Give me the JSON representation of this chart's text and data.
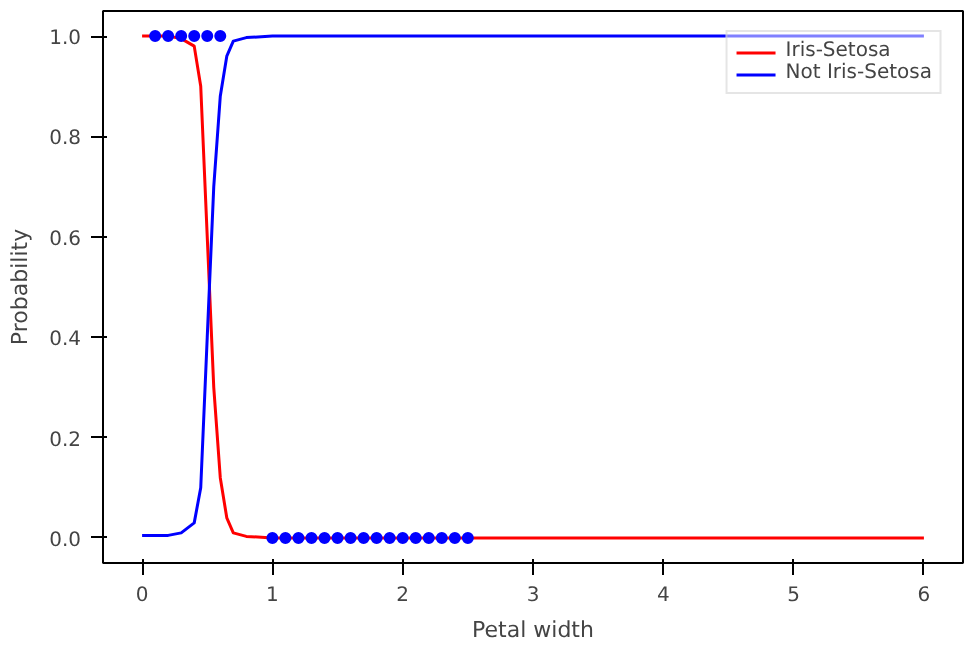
{
  "chart_data": {
    "type": "line",
    "xlabel": "Petal width",
    "ylabel": "Probability",
    "xlim": [
      -0.3,
      6.3
    ],
    "ylim": [
      -0.05,
      1.05
    ],
    "xticks": [
      0,
      1,
      2,
      3,
      4,
      5,
      6
    ],
    "yticks": [
      {
        "value": 0,
        "label": "0.0"
      },
      {
        "value": 0.2,
        "label": "0.2"
      },
      {
        "value": 0.4,
        "label": "0.4"
      },
      {
        "value": 0.6,
        "label": "0.6"
      },
      {
        "value": 0.8,
        "label": "0.8"
      },
      {
        "value": 1,
        "label": "1.0"
      }
    ],
    "grid": false,
    "legend": "top right",
    "series": [
      {
        "name": "Iris-Setosa",
        "color": "#ff0000",
        "x": [
          0,
          0.2,
          0.3,
          0.4,
          0.45,
          0.5,
          0.55,
          0.6,
          0.65,
          0.7,
          0.8,
          1,
          2,
          3,
          4,
          5,
          6
        ],
        "values": [
          1,
          1,
          0.995,
          0.98,
          0.9,
          0.6,
          0.3,
          0.12,
          0.04,
          0.01,
          0.003,
          0,
          0,
          0,
          0,
          0,
          0
        ]
      },
      {
        "name": "Not Iris-Setosa",
        "color": "#0000ff",
        "x": [
          0,
          0.2,
          0.3,
          0.4,
          0.45,
          0.5,
          0.55,
          0.6,
          0.65,
          0.7,
          0.8,
          1,
          2,
          3,
          4,
          5,
          6
        ],
        "values": [
          0.005,
          0.005,
          0.01,
          0.03,
          0.1,
          0.4,
          0.7,
          0.88,
          0.96,
          0.99,
          0.997,
          1,
          1,
          1,
          1,
          1,
          1
        ]
      },
      {
        "type": "scatter",
        "marker": "circle",
        "color": "#0000ff",
        "x": [
          0.1,
          0.2,
          0.3,
          0.4,
          0.5,
          0.6,
          1.0,
          1.1,
          1.2,
          1.3,
          1.4,
          1.5,
          1.6,
          1.7,
          1.8,
          1.9,
          2.0,
          2.1,
          2.2,
          2.3,
          2.4,
          2.5
        ],
        "values": [
          1,
          1,
          1,
          1,
          1,
          1,
          0,
          0,
          0,
          0,
          0,
          0,
          0,
          0,
          0,
          0,
          0,
          0,
          0,
          0,
          0,
          0
        ]
      }
    ]
  }
}
